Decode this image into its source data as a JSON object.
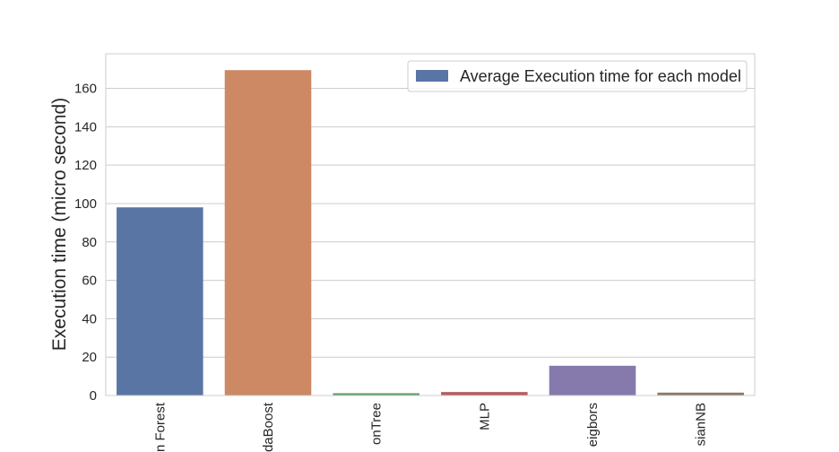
{
  "chart_data": {
    "type": "bar",
    "title": "",
    "xlabel": "",
    "ylabel": "Execution time (micro second)",
    "ylim": [
      0,
      178
    ],
    "yticks": [
      0,
      20,
      40,
      60,
      80,
      100,
      120,
      140,
      160
    ],
    "grid": true,
    "legend": {
      "label": "Average Execution time for each model",
      "placement": "top-right"
    },
    "categories": [
      "n Forest",
      "daBoost",
      "onTree",
      "MLP",
      "eigbors",
      "sianNB"
    ],
    "values": [
      98,
      169.5,
      1.2,
      1.8,
      15.5,
      1.5
    ],
    "colors": [
      "#5975a4",
      "#cc8963",
      "#5f9e6e",
      "#b55d60",
      "#857aab",
      "#8d7866"
    ],
    "legend_color": "#5975a4"
  }
}
